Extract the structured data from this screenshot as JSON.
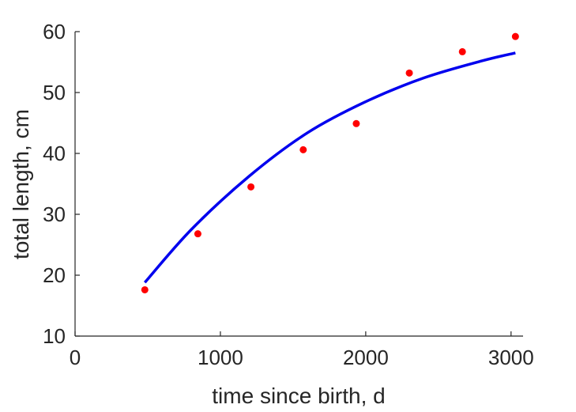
{
  "chart_data": {
    "type": "scatter",
    "title": "",
    "xlabel": "time since birth, d",
    "ylabel": "total length, cm",
    "xlim": [
      0,
      3050
    ],
    "ylim": [
      10,
      60
    ],
    "xticks": [
      0,
      1000,
      2000,
      3000
    ],
    "yticks": [
      10,
      20,
      30,
      40,
      50,
      60
    ],
    "grid": false,
    "legend": "none",
    "series": [
      {
        "kind": "points",
        "color": "#ff0000",
        "x": [
          480,
          845,
          1210,
          1570,
          1935,
          2300,
          2665,
          3030
        ],
        "y": [
          17.6,
          26.8,
          34.5,
          40.6,
          44.9,
          53.2,
          56.7,
          59.2
        ]
      },
      {
        "kind": "line",
        "color": "#0000ee",
        "x": [
          480,
          800,
          1200,
          1600,
          2000,
          2400,
          2800,
          3030
        ],
        "y": [
          18.8,
          27.5,
          36.3,
          43.4,
          48.5,
          52.4,
          55.2,
          56.5
        ]
      }
    ]
  }
}
